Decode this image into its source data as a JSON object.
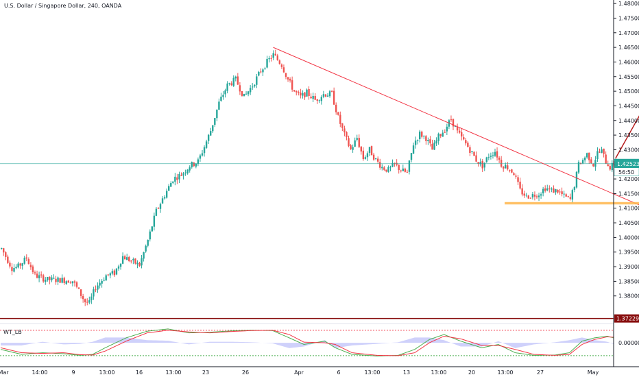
{
  "title": "U.S. Dollar / Singapore Dollar, 240, OANDA",
  "indicator_label": "WT_LB",
  "colors": {
    "up": "#26a69a",
    "down": "#ef5350",
    "trendline": "#f23645",
    "support": "#ffb74d",
    "price_line": "#26a69a",
    "low_line": "#880e0e",
    "arrow": "#b71c1c",
    "wt1": "#4caf50",
    "wt2": "#f23645",
    "hist": "#9598f7",
    "ob": "#f23645",
    "os": "#4caf50",
    "axis": "#131722",
    "grid_border": "#e0e3eb"
  },
  "chart_data": [
    {
      "type": "candlestick",
      "title": "U.S. Dollar / Singapore Dollar, 240, OANDA",
      "ylim": [
        1.3722,
        1.4812
      ],
      "y_ticks": [
        "1.48000",
        "1.47500",
        "1.47000",
        "1.46500",
        "1.46000",
        "1.45500",
        "1.45000",
        "1.44500",
        "1.44000",
        "1.43500",
        "1.43000",
        "1.42500",
        "1.42000",
        "1.41500",
        "1.41000",
        "1.40500",
        "1.40000",
        "1.39500",
        "1.39000",
        "1.38500",
        "1.38000"
      ],
      "x_ticks": [
        "Mar",
        "14:00",
        "9",
        "13:00",
        "16",
        "13:00",
        "23",
        "26",
        "Apr",
        "6",
        "13:00",
        "13",
        "13:00",
        "20",
        "13:00",
        "27",
        "May"
      ],
      "last_price": "1.42523",
      "countdown": "56:50",
      "low_marker": "1.37229",
      "keypoints": [
        [
          0,
          1.3962
        ],
        [
          5,
          1.3895
        ],
        [
          8,
          1.39
        ],
        [
          12,
          1.393
        ],
        [
          16,
          1.387
        ],
        [
          22,
          1.3855
        ],
        [
          28,
          1.3855
        ],
        [
          34,
          1.3852
        ],
        [
          40,
          1.378
        ],
        [
          42,
          1.3775
        ],
        [
          45,
          1.383
        ],
        [
          50,
          1.387
        ],
        [
          54,
          1.3878
        ],
        [
          58,
          1.3935
        ],
        [
          62,
          1.392
        ],
        [
          66,
          1.3905
        ],
        [
          70,
          1.399
        ],
        [
          74,
          1.409
        ],
        [
          78,
          1.4145
        ],
        [
          82,
          1.42
        ],
        [
          86,
          1.4215
        ],
        [
          90,
          1.4245
        ],
        [
          94,
          1.426
        ],
        [
          97,
          1.431
        ],
        [
          100,
          1.4365
        ],
        [
          104,
          1.446
        ],
        [
          108,
          1.452
        ],
        [
          112,
          1.454
        ],
        [
          116,
          1.448
        ],
        [
          120,
          1.452
        ],
        [
          124,
          1.457
        ],
        [
          127,
          1.46
        ],
        [
          130,
          1.4625
        ],
        [
          134,
          1.459
        ],
        [
          137,
          1.454
        ],
        [
          140,
          1.45
        ],
        [
          143,
          1.448
        ],
        [
          146,
          1.4495
        ],
        [
          150,
          1.447
        ],
        [
          154,
          1.449
        ],
        [
          158,
          1.449
        ],
        [
          161,
          1.441
        ],
        [
          164,
          1.435
        ],
        [
          167,
          1.43
        ],
        [
          170,
          1.434
        ],
        [
          173,
          1.427
        ],
        [
          176,
          1.43
        ],
        [
          179,
          1.4265
        ],
        [
          182,
          1.424
        ],
        [
          185,
          1.423
        ],
        [
          188,
          1.425
        ],
        [
          191,
          1.423
        ],
        [
          194,
          1.422
        ],
        [
          197,
          1.432
        ],
        [
          200,
          1.4355
        ],
        [
          203,
          1.434
        ],
        [
          206,
          1.43
        ],
        [
          209,
          1.4345
        ],
        [
          212,
          1.437
        ],
        [
          215,
          1.4405
        ],
        [
          218,
          1.436
        ],
        [
          221,
          1.433
        ],
        [
          224,
          1.43
        ],
        [
          227,
          1.4265
        ],
        [
          230,
          1.4245
        ],
        [
          233,
          1.428
        ],
        [
          236,
          1.4295
        ],
        [
          239,
          1.425
        ],
        [
          242,
          1.424
        ],
        [
          245,
          1.422
        ],
        [
          248,
          1.416
        ],
        [
          251,
          1.414
        ],
        [
          254,
          1.4145
        ],
        [
          257,
          1.415
        ],
        [
          260,
          1.417
        ],
        [
          263,
          1.416
        ],
        [
          266,
          1.416
        ],
        [
          269,
          1.414
        ],
        [
          272,
          1.413
        ],
        [
          274,
          1.418
        ],
        [
          276,
          1.425
        ],
        [
          278,
          1.4265
        ],
        [
          280,
          1.4285
        ],
        [
          283,
          1.425
        ],
        [
          285,
          1.429
        ],
        [
          287,
          1.4295
        ],
        [
          289,
          1.426
        ],
        [
          291,
          1.424
        ],
        [
          293,
          1.425
        ]
      ],
      "annotations": {
        "trendline": [
          [
            130,
            1.465
          ],
          [
            308,
            1.4103
          ]
        ],
        "support": {
          "price": 1.4117,
          "from": 241,
          "to": 310
        },
        "arrow": [
          [
            294,
            1.427
          ],
          [
            310,
            1.4475
          ]
        ]
      }
    },
    {
      "type": "line",
      "title": "WT_LB",
      "ylim": [
        -0.62,
        0.5
      ],
      "y_ticks": [
        "0.00000"
      ],
      "levels": {
        "overbought": 0.38,
        "oversold": -0.39
      },
      "series": [
        {
          "key": "wt1",
          "values": [
            [
              0,
              -0.2
            ],
            [
              10,
              -0.35
            ],
            [
              20,
              -0.3
            ],
            [
              30,
              -0.33
            ],
            [
              38,
              -0.38
            ],
            [
              44,
              -0.35
            ],
            [
              50,
              -0.15
            ],
            [
              60,
              0.15
            ],
            [
              70,
              0.35
            ],
            [
              80,
              0.42
            ],
            [
              90,
              0.3
            ],
            [
              100,
              0.32
            ],
            [
              110,
              0.36
            ],
            [
              120,
              0.38
            ],
            [
              130,
              0.37
            ],
            [
              138,
              0.15
            ],
            [
              145,
              -0.05
            ],
            [
              155,
              0.05
            ],
            [
              160,
              -0.15
            ],
            [
              168,
              -0.35
            ],
            [
              180,
              -0.4
            ],
            [
              190,
              -0.38
            ],
            [
              198,
              -0.2
            ],
            [
              205,
              0.1
            ],
            [
              212,
              0.25
            ],
            [
              220,
              0.05
            ],
            [
              230,
              -0.15
            ],
            [
              238,
              -0.05
            ],
            [
              246,
              -0.3
            ],
            [
              255,
              -0.38
            ],
            [
              265,
              -0.37
            ],
            [
              272,
              -0.3
            ],
            [
              278,
              0.05
            ],
            [
              284,
              0.15
            ],
            [
              290,
              0.2
            ],
            [
              293,
              0.15
            ]
          ]
        },
        {
          "key": "wt2",
          "values": [
            [
              0,
              -0.15
            ],
            [
              10,
              -0.3
            ],
            [
              20,
              -0.32
            ],
            [
              30,
              -0.3
            ],
            [
              38,
              -0.36
            ],
            [
              44,
              -0.37
            ],
            [
              50,
              -0.25
            ],
            [
              60,
              0.05
            ],
            [
              70,
              0.3
            ],
            [
              80,
              0.38
            ],
            [
              90,
              0.33
            ],
            [
              100,
              0.3
            ],
            [
              110,
              0.34
            ],
            [
              120,
              0.37
            ],
            [
              130,
              0.38
            ],
            [
              138,
              0.25
            ],
            [
              145,
              0.02
            ],
            [
              155,
              0.0
            ],
            [
              160,
              -0.05
            ],
            [
              168,
              -0.3
            ],
            [
              180,
              -0.38
            ],
            [
              190,
              -0.39
            ],
            [
              198,
              -0.3
            ],
            [
              205,
              0.0
            ],
            [
              212,
              0.2
            ],
            [
              220,
              0.12
            ],
            [
              230,
              -0.08
            ],
            [
              238,
              -0.08
            ],
            [
              246,
              -0.2
            ],
            [
              255,
              -0.35
            ],
            [
              265,
              -0.38
            ],
            [
              272,
              -0.35
            ],
            [
              278,
              -0.05
            ],
            [
              284,
              0.1
            ],
            [
              290,
              0.18
            ],
            [
              293,
              0.17
            ]
          ]
        }
      ]
    }
  ]
}
